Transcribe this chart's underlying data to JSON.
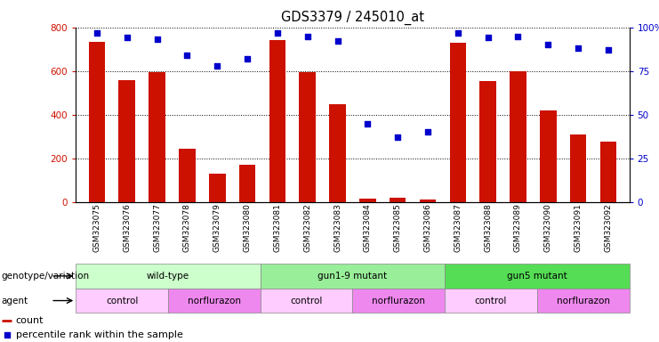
{
  "title": "GDS3379 / 245010_at",
  "samples": [
    "GSM323075",
    "GSM323076",
    "GSM323077",
    "GSM323078",
    "GSM323079",
    "GSM323080",
    "GSM323081",
    "GSM323082",
    "GSM323083",
    "GSM323084",
    "GSM323085",
    "GSM323086",
    "GSM323087",
    "GSM323088",
    "GSM323089",
    "GSM323090",
    "GSM323091",
    "GSM323092"
  ],
  "counts": [
    735,
    560,
    595,
    245,
    130,
    170,
    740,
    595,
    450,
    15,
    20,
    10,
    730,
    555,
    600,
    420,
    310,
    275
  ],
  "percentile_ranks": [
    97,
    94,
    93,
    84,
    78,
    82,
    97,
    95,
    92,
    45,
    37,
    40,
    97,
    94,
    95,
    90,
    88,
    87
  ],
  "ylim_left": [
    0,
    800
  ],
  "ylim_right": [
    0,
    100
  ],
  "yticks_left": [
    0,
    200,
    400,
    600,
    800
  ],
  "yticks_right": [
    0,
    25,
    50,
    75,
    100
  ],
  "bar_color": "#cc1100",
  "dot_color": "#0000cc",
  "background_color": "#ffffff",
  "genotype_groups": [
    {
      "label": "wild-type",
      "start": 0,
      "end": 6,
      "color": "#ccffcc"
    },
    {
      "label": "gun1-9 mutant",
      "start": 6,
      "end": 12,
      "color": "#99ee99"
    },
    {
      "label": "gun5 mutant",
      "start": 12,
      "end": 18,
      "color": "#55dd55"
    }
  ],
  "agent_groups": [
    {
      "label": "control",
      "start": 0,
      "end": 3,
      "color": "#ffccff"
    },
    {
      "label": "norflurazon",
      "start": 3,
      "end": 6,
      "color": "#ee88ee"
    },
    {
      "label": "control",
      "start": 6,
      "end": 9,
      "color": "#ffccff"
    },
    {
      "label": "norflurazon",
      "start": 9,
      "end": 12,
      "color": "#ee88ee"
    },
    {
      "label": "control",
      "start": 12,
      "end": 15,
      "color": "#ffccff"
    },
    {
      "label": "norflurazon",
      "start": 15,
      "end": 18,
      "color": "#ee88ee"
    }
  ],
  "legend_count_label": "count",
  "legend_pct_label": "percentile rank within the sample",
  "genotype_row_label": "genotype/variation",
  "agent_row_label": "agent"
}
